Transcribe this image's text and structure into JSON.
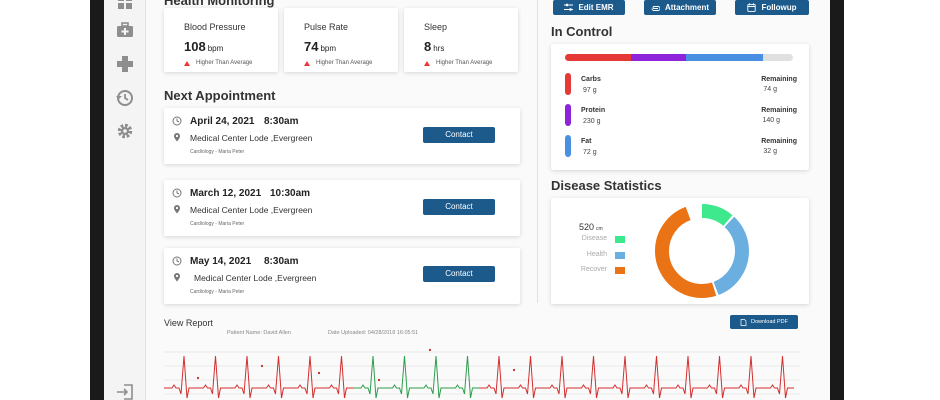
{
  "health": {
    "title": "Health Monitoring",
    "metrics": [
      {
        "label": "Blood Pressure",
        "value": "108",
        "unit": "bpm",
        "note": "Higher Than Average"
      },
      {
        "label": "Pulse Rate",
        "value": "74",
        "unit": "bpm",
        "note": "Higher Than Average"
      },
      {
        "label": "Sleep",
        "value": "8",
        "unit": "hrs",
        "note": "Higher Than Average"
      }
    ]
  },
  "appointments": {
    "title": "Next Appointment",
    "items": [
      {
        "date": "April 24, 2021",
        "time": "8:30am",
        "location": "Medical Center Lode ,Evergreen",
        "doctor": "Cardiology - Maria Peter",
        "button": "Contact"
      },
      {
        "date": "March 12, 2021",
        "time": "10:30am",
        "location": "Medical Center Lode ,Evergreen",
        "doctor": "Cardiology - Maria Peter",
        "button": "Contact"
      },
      {
        "date": "May 14, 2021",
        "time": "8:30am",
        "location": "Medical Center Lode ,Evergreen",
        "doctor": "Cardiology - Maria Peter",
        "button": "Contact"
      }
    ]
  },
  "actions": {
    "edit_emr": "Edit EMR",
    "attachment": "Attachment",
    "followup": "Followup"
  },
  "in_control": {
    "title": "In Control",
    "remaining_label": "Remaining",
    "macros": [
      {
        "name": "Carbs",
        "amount": "97 g",
        "remaining": "74 g",
        "color": "#e53935",
        "share": 0.29
      },
      {
        "name": "Protein",
        "amount": "230 g",
        "remaining": "140 g",
        "color": "#8e24d9",
        "share": 0.24
      },
      {
        "name": "Fat",
        "amount": "72 g",
        "remaining": "32 g",
        "color": "#4a90e2",
        "share": 0.34
      }
    ]
  },
  "disease": {
    "title": "Disease Statistics",
    "total": "520",
    "total_unit": "cm",
    "legend": [
      {
        "label": "Disease",
        "color": "#3ee88c",
        "value": 0.17
      },
      {
        "label": "Health",
        "color": "#6aafe0",
        "value": 0.33
      },
      {
        "label": "Recover",
        "color": "#ea7415",
        "value": 0.5
      }
    ]
  },
  "report": {
    "title": "View Report",
    "patient_label": "Patient Name:",
    "patient_name": "David Allen",
    "uploaded_label": "Date Uploaded:",
    "uploaded_value": "04/28/2018  16:05:51",
    "download_label": "Download PDF"
  },
  "sidebar": {
    "icons": [
      "grid-icon",
      "medical-bag-icon",
      "plus-icon",
      "history-icon",
      "gear-icon",
      "logout-icon"
    ]
  }
}
